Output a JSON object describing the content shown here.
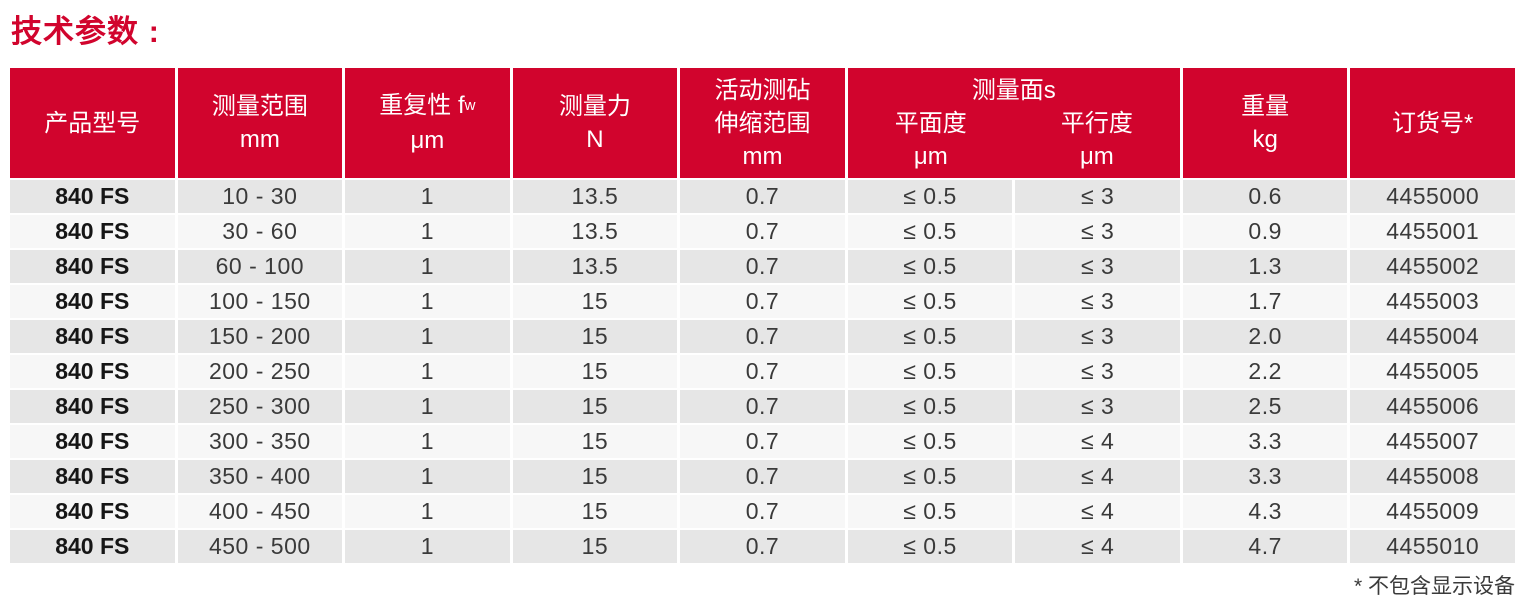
{
  "title": "技术参数 :",
  "colors": {
    "accent_red": "#d1042d",
    "row_gray": "#e6e6e6",
    "row_light": "#f7f7f7",
    "text": "#3a3a3a"
  },
  "table": {
    "headers": {
      "product_model": "产品型号",
      "measuring_range": [
        "测量范围",
        "mm"
      ],
      "repeatability": {
        "main": "重复性 f",
        "sub": "w",
        "unit": "μm"
      },
      "measuring_force": [
        "测量力",
        "N"
      ],
      "anvil": [
        "活动测砧",
        "伸缩范围",
        "mm"
      ],
      "measuring_faces": {
        "group": "测量面s",
        "flatness": "平面度",
        "parallelism": "平行度",
        "flatness_unit": "μm",
        "parallelism_unit": "μm"
      },
      "weight": [
        "重量",
        "kg"
      ],
      "order_no": "订货号*"
    },
    "rows": [
      {
        "model": "840 FS",
        "range": "10 - 30",
        "repeat": "1",
        "force": "13.5",
        "anvil": "0.7",
        "flatness": "≤ 0.5",
        "parallelism": "≤ 3",
        "weight": "0.6",
        "order": "4455000"
      },
      {
        "model": "840 FS",
        "range": "30 - 60",
        "repeat": "1",
        "force": "13.5",
        "anvil": "0.7",
        "flatness": "≤ 0.5",
        "parallelism": "≤ 3",
        "weight": "0.9",
        "order": "4455001"
      },
      {
        "model": "840 FS",
        "range": "60 - 100",
        "repeat": "1",
        "force": "13.5",
        "anvil": "0.7",
        "flatness": "≤ 0.5",
        "parallelism": "≤ 3",
        "weight": "1.3",
        "order": "4455002"
      },
      {
        "model": "840 FS",
        "range": "100 - 150",
        "repeat": "1",
        "force": "15",
        "anvil": "0.7",
        "flatness": "≤ 0.5",
        "parallelism": "≤ 3",
        "weight": "1.7",
        "order": "4455003"
      },
      {
        "model": "840 FS",
        "range": "150 - 200",
        "repeat": "1",
        "force": "15",
        "anvil": "0.7",
        "flatness": "≤ 0.5",
        "parallelism": "≤ 3",
        "weight": "2.0",
        "order": "4455004"
      },
      {
        "model": "840 FS",
        "range": "200 - 250",
        "repeat": "1",
        "force": "15",
        "anvil": "0.7",
        "flatness": "≤ 0.5",
        "parallelism": "≤ 3",
        "weight": "2.2",
        "order": "4455005"
      },
      {
        "model": "840 FS",
        "range": "250 - 300",
        "repeat": "1",
        "force": "15",
        "anvil": "0.7",
        "flatness": "≤ 0.5",
        "parallelism": "≤ 3",
        "weight": "2.5",
        "order": "4455006"
      },
      {
        "model": "840 FS",
        "range": "300 - 350",
        "repeat": "1",
        "force": "15",
        "anvil": "0.7",
        "flatness": "≤ 0.5",
        "parallelism": "≤ 4",
        "weight": "3.3",
        "order": "4455007"
      },
      {
        "model": "840 FS",
        "range": "350 - 400",
        "repeat": "1",
        "force": "15",
        "anvil": "0.7",
        "flatness": "≤ 0.5",
        "parallelism": "≤ 4",
        "weight": "3.3",
        "order": "4455008"
      },
      {
        "model": "840 FS",
        "range": "400 - 450",
        "repeat": "1",
        "force": "15",
        "anvil": "0.7",
        "flatness": "≤ 0.5",
        "parallelism": "≤ 4",
        "weight": "4.3",
        "order": "4455009"
      },
      {
        "model": "840 FS",
        "range": "450 - 500",
        "repeat": "1",
        "force": "15",
        "anvil": "0.7",
        "flatness": "≤ 0.5",
        "parallelism": "≤ 4",
        "weight": "4.7",
        "order": "4455010"
      }
    ]
  },
  "footnote": "* 不包含显示设备"
}
